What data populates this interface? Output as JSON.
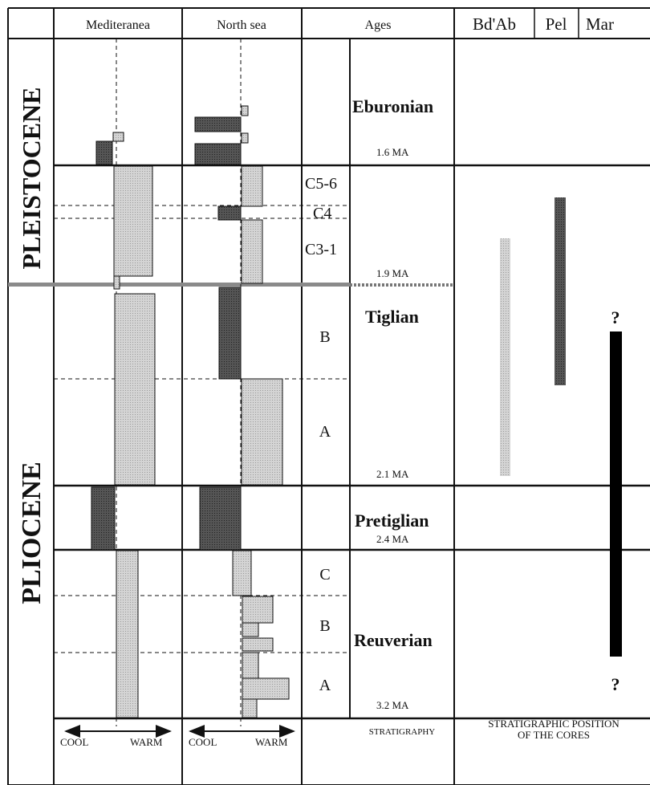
{
  "headers": {
    "mediterranea": "Mediteranea",
    "north_sea": "North sea",
    "ages": "Ages",
    "bdab": "Bd'Ab",
    "pel": "Pel",
    "mar": "Mar"
  },
  "epochs": {
    "pleistocene": "PLEISTOCENE",
    "pliocene": "PLIOCENE"
  },
  "stages": {
    "eburonian": "Eburonian",
    "tiglian": "Tiglian",
    "pretiglian": "Pretiglian",
    "reuverian": "Reuverian"
  },
  "ages": {
    "a1": "1.6 MA",
    "a2": "1.9 MA",
    "a3": "2.1 MA",
    "a4": "2.4 MA",
    "a5": "3.2 MA"
  },
  "substages": {
    "c56": "C5-6",
    "c4": "C4",
    "c31": "C3-1",
    "tig_b": "B",
    "tig_a": "A",
    "reu_c": "C",
    "reu_b": "B",
    "reu_a": "A"
  },
  "footer": {
    "cool": "COOL",
    "warm": "WARM",
    "stratigraphy": "STRATIGRAPHY",
    "position_line1": "STRATIGRAPHIC POSITION",
    "position_line2": "OF THE CORES"
  },
  "mar_question": "?",
  "colors": {
    "warm": "#c8c8c8",
    "cool": "#4a4a4a",
    "mar": "#000000",
    "line": "#111111"
  }
}
